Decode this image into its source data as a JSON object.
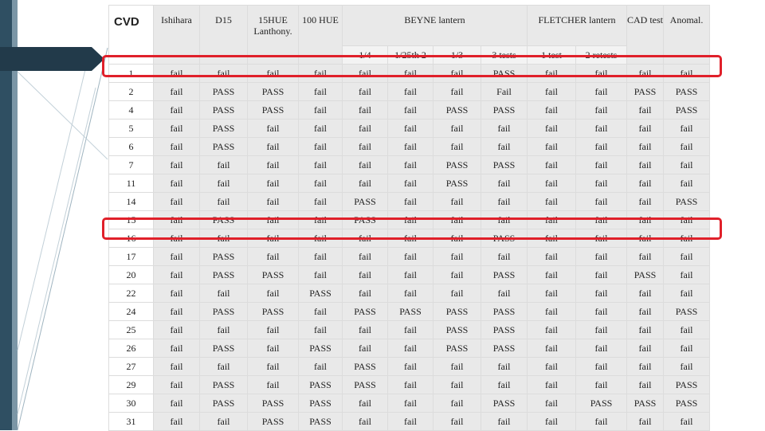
{
  "header": {
    "cvd": "CVD",
    "ishihara": "Ishihara",
    "d15": "D15",
    "hue15": "15HUE Lanthony.",
    "hue100": "100 HUE",
    "beyne": "BEYNE lantern",
    "fletcher": "FLETCHER lantern",
    "cad": "CAD test",
    "anomal": "Anomal.",
    "beyne_sub": [
      "1/4",
      "1/25th 2",
      "1/3",
      "3 tests"
    ],
    "fletcher_sub": [
      "1 test",
      "2 retests"
    ]
  },
  "rows": [
    [
      "1",
      "fail",
      "fail",
      "fail",
      "fail",
      "fail",
      "fail",
      "fail",
      "PASS",
      "fail",
      "fail",
      "fail",
      "fail"
    ],
    [
      "2",
      "fail",
      "PASS",
      "PASS",
      "fail",
      "fail",
      "fail",
      "fail",
      "Fail",
      "fail",
      "fail",
      "PASS",
      "PASS"
    ],
    [
      "4",
      "fail",
      "PASS",
      "PASS",
      "fail",
      "fail",
      "fail",
      "PASS",
      "PASS",
      "fail",
      "fail",
      "fail",
      "PASS"
    ],
    [
      "5",
      "fail",
      "PASS",
      "fail",
      "fail",
      "fail",
      "fail",
      "fail",
      "fail",
      "fail",
      "fail",
      "fail",
      "fail"
    ],
    [
      "6",
      "fail",
      "PASS",
      "fail",
      "fail",
      "fail",
      "fail",
      "fail",
      "fail",
      "fail",
      "fail",
      "fail",
      "fail"
    ],
    [
      "7",
      "fail",
      "fail",
      "fail",
      "fail",
      "fail",
      "fail",
      "PASS",
      "PASS",
      "fail",
      "fail",
      "fail",
      "fail"
    ],
    [
      "11",
      "fail",
      "fail",
      "fail",
      "fail",
      "fail",
      "fail",
      "PASS",
      "fail",
      "fail",
      "fail",
      "fail",
      "fail"
    ],
    [
      "14",
      "fail",
      "fail",
      "fail",
      "fail",
      "PASS",
      "fail",
      "fail",
      "fail",
      "fail",
      "fail",
      "fail",
      "PASS"
    ],
    [
      "15",
      "fail",
      "PASS",
      "fail",
      "fail",
      "PASS",
      "fail",
      "fail",
      "fail",
      "fail",
      "fail",
      "fail",
      "fail"
    ],
    [
      "16",
      "fail",
      "fail",
      "fail",
      "fail",
      "fail",
      "fail",
      "fail",
      "PASS",
      "fail",
      "fail",
      "fail",
      "fail"
    ],
    [
      "17",
      "fail",
      "PASS",
      "fail",
      "fail",
      "fail",
      "fail",
      "fail",
      "fail",
      "fail",
      "fail",
      "fail",
      "fail"
    ],
    [
      "20",
      "fail",
      "PASS",
      "PASS",
      "fail",
      "fail",
      "fail",
      "fail",
      "PASS",
      "fail",
      "fail",
      "PASS",
      "fail"
    ],
    [
      "22",
      "fail",
      "fail",
      "fail",
      "PASS",
      "fail",
      "fail",
      "fail",
      "fail",
      "fail",
      "fail",
      "fail",
      "fail"
    ],
    [
      "24",
      "fail",
      "PASS",
      "PASS",
      "fail",
      "PASS",
      "PASS",
      "PASS",
      "PASS",
      "fail",
      "fail",
      "fail",
      "PASS"
    ],
    [
      "25",
      "fail",
      "fail",
      "fail",
      "fail",
      "fail",
      "fail",
      "PASS",
      "PASS",
      "fail",
      "fail",
      "fail",
      "fail"
    ],
    [
      "26",
      "fail",
      "PASS",
      "fail",
      "PASS",
      "fail",
      "fail",
      "PASS",
      "PASS",
      "fail",
      "fail",
      "fail",
      "fail"
    ],
    [
      "27",
      "fail",
      "fail",
      "fail",
      "fail",
      "PASS",
      "fail",
      "fail",
      "fail",
      "fail",
      "fail",
      "fail",
      "fail"
    ],
    [
      "29",
      "fail",
      "PASS",
      "fail",
      "PASS",
      "PASS",
      "fail",
      "fail",
      "fail",
      "fail",
      "fail",
      "fail",
      "PASS"
    ],
    [
      "30",
      "fail",
      "PASS",
      "PASS",
      "PASS",
      "fail",
      "fail",
      "fail",
      "PASS",
      "fail",
      "PASS",
      "PASS",
      "PASS"
    ],
    [
      "31",
      "fail",
      "fail",
      "PASS",
      "PASS",
      "fail",
      "fail",
      "fail",
      "fail",
      "fail",
      "fail",
      "fail",
      "fail"
    ]
  ],
  "highlighted_rows": [
    "1",
    "16"
  ],
  "colors": {
    "highlight": "#e0202a",
    "band_dark": "#2f4f62",
    "band_light": "#7b96a6",
    "cell_white": "#ffffff",
    "cell_gray": "#e9e9e9",
    "cell_light": "#f3f3f3"
  }
}
